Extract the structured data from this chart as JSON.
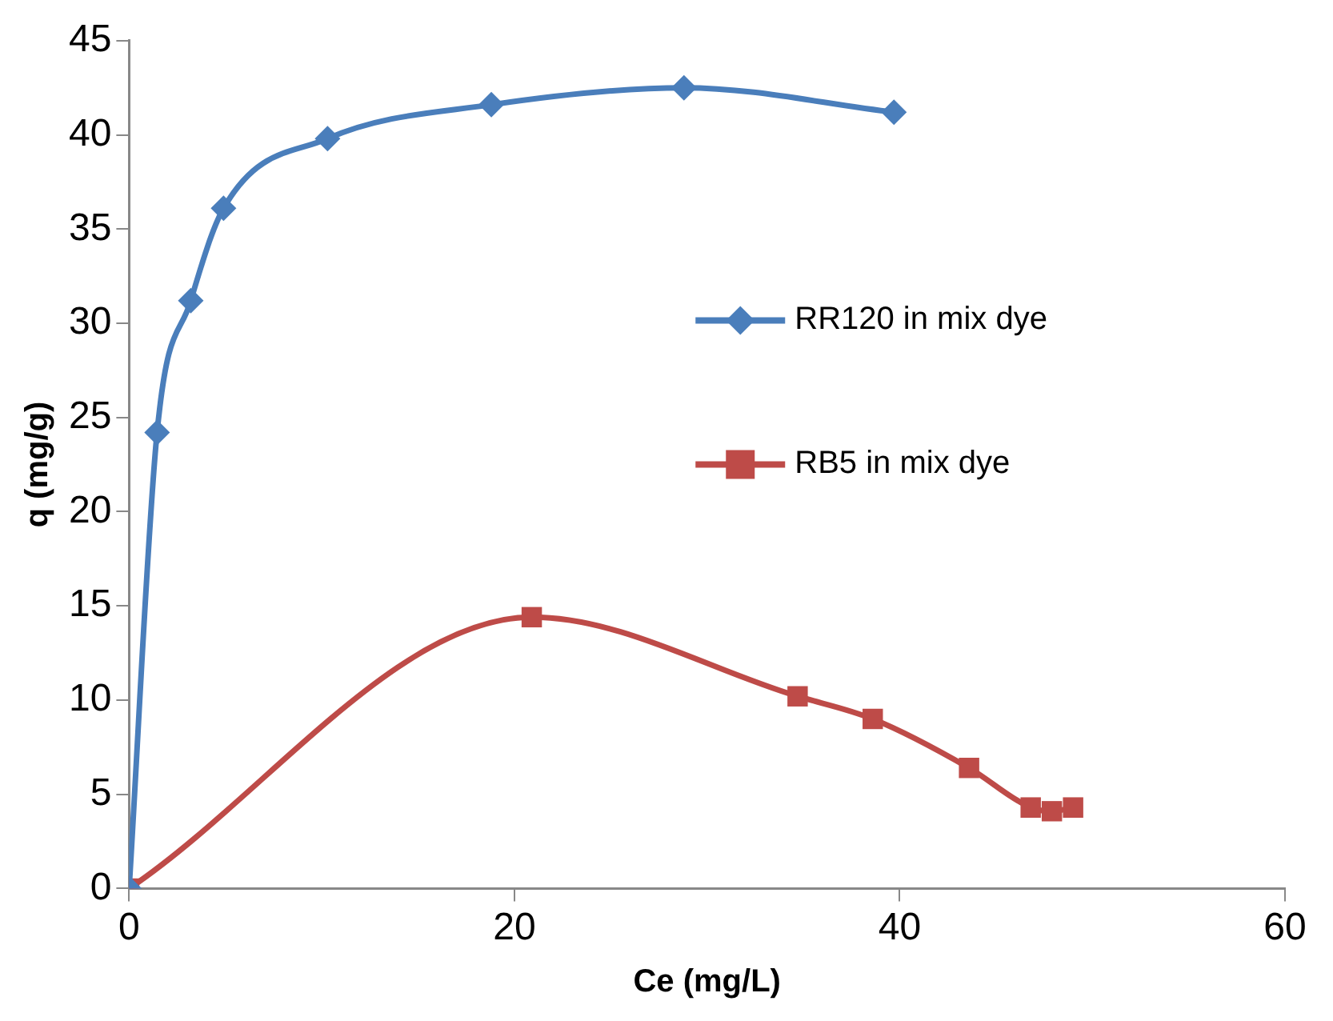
{
  "chart_data": {
    "type": "line",
    "xlabel": "Ce (mg/L)",
    "ylabel": "q (mg/g)",
    "xlim": [
      0,
      60
    ],
    "xticks": [
      0,
      20,
      40,
      60
    ],
    "ylim": [
      0,
      45
    ],
    "yticks": [
      0,
      5,
      10,
      15,
      20,
      25,
      30,
      35,
      40,
      45
    ],
    "grid": false,
    "legend": "right",
    "line_style": "solid",
    "series": [
      {
        "name": "RR120 in mix dye",
        "color": "#4a7ebb",
        "marker": "diamond",
        "x": [
          0,
          1.45,
          3.2,
          4.9,
          10.3,
          18.8,
          28.8,
          39.7
        ],
        "values": [
          0,
          24.2,
          31.2,
          36.1,
          39.8,
          41.6,
          42.5,
          41.2
        ]
      },
      {
        "name": "RB5 in mix dye",
        "color": "#be4b48",
        "marker": "square",
        "x": [
          0,
          20.9,
          34.7,
          38.6,
          43.6,
          46.8,
          47.9,
          49.0
        ],
        "values": [
          0,
          14.4,
          10.2,
          9.0,
          6.4,
          4.3,
          4.1,
          4.3
        ]
      }
    ]
  }
}
